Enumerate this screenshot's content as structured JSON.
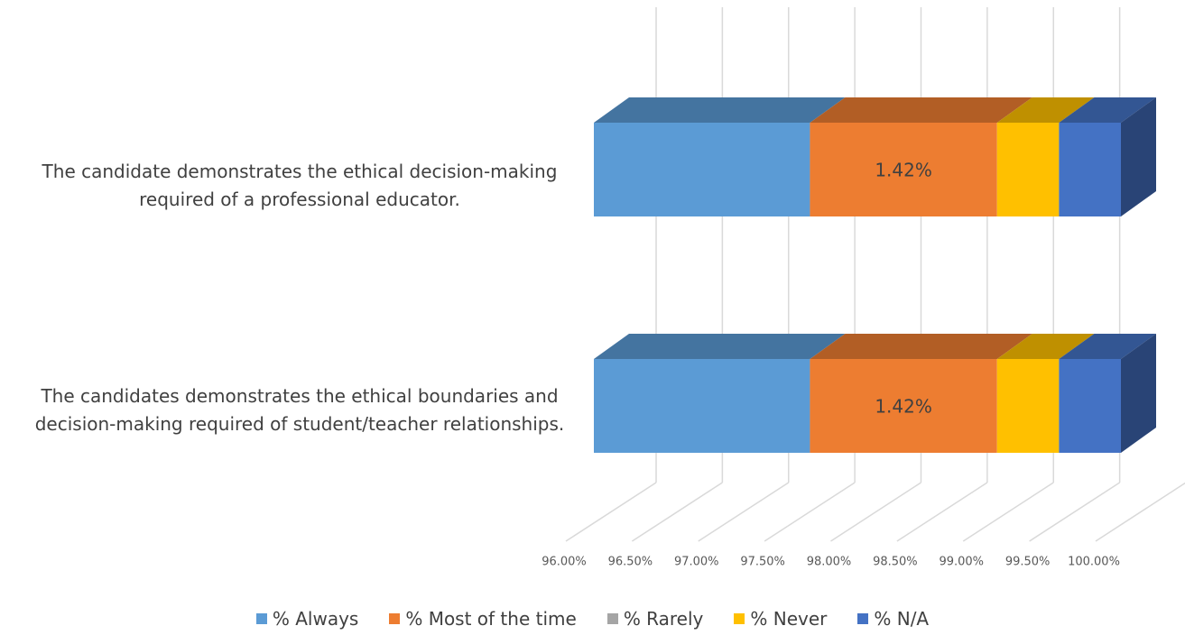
{
  "chart_data": {
    "type": "bar3d_stacked_horizontal",
    "categories": [
      "The candidate demonstrates the ethical decision-making required of a professional educator.",
      "The candidates demonstrates the ethical boundaries and decision-making required of student/teacher relationships."
    ],
    "series": [
      {
        "name": "% Always",
        "color": "#5b9bd5",
        "values": [
          97.64,
          97.64
        ]
      },
      {
        "name": "% Most of the time",
        "color": "#ed7d31",
        "values": [
          1.42,
          1.42
        ],
        "value_labels": [
          "1.42%",
          "1.42%"
        ]
      },
      {
        "name": "% Rarely",
        "color": "#a5a5a5",
        "values": [
          0,
          0
        ]
      },
      {
        "name": "% Never",
        "color": "#ffc000",
        "values": [
          0.47,
          0.47
        ]
      },
      {
        "name": "% N/A",
        "color": "#4472c4",
        "values": [
          0.47,
          0.47
        ]
      }
    ],
    "xlim": [
      96,
      100
    ],
    "xticks": [
      {
        "value": 96,
        "label": "96.00%"
      },
      {
        "value": 96.5,
        "label": "96.50%"
      },
      {
        "value": 97,
        "label": "97.00%"
      },
      {
        "value": 97.5,
        "label": "97.50%"
      },
      {
        "value": 98,
        "label": "98.00%"
      },
      {
        "value": 98.5,
        "label": "98.50%"
      },
      {
        "value": 99,
        "label": "99.00%"
      },
      {
        "value": 99.5,
        "label": "99.50%"
      },
      {
        "value": 100,
        "label": "100.00%"
      }
    ],
    "grid": true
  }
}
